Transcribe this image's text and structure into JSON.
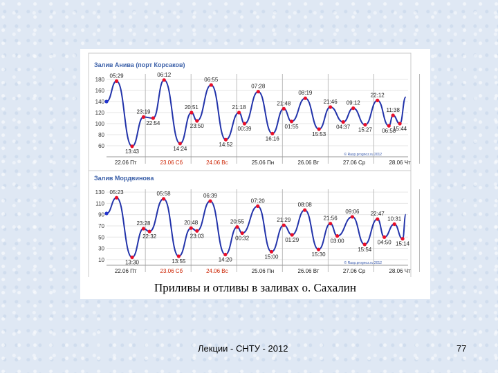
{
  "caption": "Приливы и отливы в заливах о. Сахалин",
  "footer": {
    "lecture": "Лекции - СНТУ - 2012",
    "page": "77"
  },
  "colors": {
    "curve": "#2233aa",
    "marker": "#e8102a",
    "start_marker": "#2233cc",
    "title": "#3a5fa8",
    "weekend": "#cc2200",
    "frame": "#c8c8c8",
    "grid": "#e6e6e6"
  },
  "chart_data": [
    {
      "type": "line",
      "title": "Залив Анива (порт Корсаков)",
      "credit": "© Rasp.prognoz.ru 2012",
      "ylim": [
        40,
        190
      ],
      "yticks": [
        60,
        80,
        100,
        120,
        140,
        160,
        180
      ],
      "days": [
        {
          "label": "22.06 Пт",
          "weekend": false
        },
        {
          "label": "23.06 Сб",
          "weekend": true
        },
        {
          "label": "24.06 Вс",
          "weekend": true
        },
        {
          "label": "25.06 Пн",
          "weekend": false
        },
        {
          "label": "26.06 Вт",
          "weekend": false
        },
        {
          "label": "27.06 Ср",
          "weekend": false
        },
        {
          "label": "28.06 Чт",
          "weekend": false
        }
      ],
      "start": {
        "x": 0.0,
        "y": 140
      },
      "end": {
        "x": 6.55,
        "y": 148
      },
      "points": [
        {
          "x": 0.22,
          "y": 177,
          "label": "05:29"
        },
        {
          "x": 0.56,
          "y": 59,
          "label": "13:43"
        },
        {
          "x": 0.81,
          "y": 112,
          "label": "23:19"
        },
        {
          "x": 1.02,
          "y": 110,
          "label": "22:54"
        },
        {
          "x": 1.26,
          "y": 179,
          "label": "06:12"
        },
        {
          "x": 1.61,
          "y": 64,
          "label": "14:24"
        },
        {
          "x": 1.86,
          "y": 120,
          "label": "20:51"
        },
        {
          "x": 1.98,
          "y": 105,
          "label": "23:50"
        },
        {
          "x": 2.29,
          "y": 170,
          "label": "06:55"
        },
        {
          "x": 2.61,
          "y": 71,
          "label": "14:52"
        },
        {
          "x": 2.9,
          "y": 120,
          "label": "21:18"
        },
        {
          "x": 3.02,
          "y": 100,
          "label": "00:39"
        },
        {
          "x": 3.32,
          "y": 158,
          "label": "07:28"
        },
        {
          "x": 3.63,
          "y": 82,
          "label": "16:16"
        },
        {
          "x": 3.88,
          "y": 127,
          "label": "21:48"
        },
        {
          "x": 4.05,
          "y": 104,
          "label": "01:55"
        },
        {
          "x": 4.35,
          "y": 146,
          "label": "08:19"
        },
        {
          "x": 4.65,
          "y": 90,
          "label": "15:53"
        },
        {
          "x": 4.9,
          "y": 130,
          "label": "21:46"
        },
        {
          "x": 5.18,
          "y": 103,
          "label": "04:37"
        },
        {
          "x": 5.4,
          "y": 128,
          "label": "09:12"
        },
        {
          "x": 5.66,
          "y": 98,
          "label": "15:27"
        },
        {
          "x": 5.93,
          "y": 142,
          "label": "22:12"
        },
        {
          "x": 6.18,
          "y": 96,
          "label": "06:58"
        },
        {
          "x": 6.27,
          "y": 115,
          "label": "11:38"
        },
        {
          "x": 6.42,
          "y": 100,
          "label": "15:44"
        }
      ]
    },
    {
      "type": "line",
      "title": "Залив Мордвинова",
      "credit": "© Rasp.prognoz.ru 2012",
      "ylim": [
        0,
        135
      ],
      "yticks": [
        10,
        30,
        50,
        70,
        90,
        110,
        130
      ],
      "days": [
        {
          "label": "22.06 Пт",
          "weekend": false
        },
        {
          "label": "23.06 Сб",
          "weekend": true
        },
        {
          "label": "24.06 Вс",
          "weekend": true
        },
        {
          "label": "25.06 Пн",
          "weekend": false
        },
        {
          "label": "26.06 Вт",
          "weekend": false
        },
        {
          "label": "27.06 Ср",
          "weekend": false
        },
        {
          "label": "28.06 Чт",
          "weekend": false
        }
      ],
      "start": {
        "x": 0.0,
        "y": 92
      },
      "end": {
        "x": 6.55,
        "y": 90
      },
      "points": [
        {
          "x": 0.22,
          "y": 120,
          "label": "05:23"
        },
        {
          "x": 0.56,
          "y": 14,
          "label": "13:30"
        },
        {
          "x": 0.81,
          "y": 65,
          "label": "23:28"
        },
        {
          "x": 0.94,
          "y": 60,
          "label": "22:32"
        },
        {
          "x": 1.25,
          "y": 118,
          "label": "05:58"
        },
        {
          "x": 1.58,
          "y": 16,
          "label": "13:55"
        },
        {
          "x": 1.85,
          "y": 66,
          "label": "20:48"
        },
        {
          "x": 1.98,
          "y": 61,
          "label": "23:03"
        },
        {
          "x": 2.27,
          "y": 114,
          "label": "06:39"
        },
        {
          "x": 2.6,
          "y": 19,
          "label": "14:20"
        },
        {
          "x": 2.86,
          "y": 68,
          "label": "20:55"
        },
        {
          "x": 2.97,
          "y": 57,
          "label": "00:32"
        },
        {
          "x": 3.31,
          "y": 105,
          "label": "07:20"
        },
        {
          "x": 3.61,
          "y": 24,
          "label": "15:00"
        },
        {
          "x": 3.88,
          "y": 71,
          "label": "21:29"
        },
        {
          "x": 4.06,
          "y": 54,
          "label": "01:29"
        },
        {
          "x": 4.34,
          "y": 98,
          "label": "08:08"
        },
        {
          "x": 4.64,
          "y": 28,
          "label": "15:30"
        },
        {
          "x": 4.9,
          "y": 74,
          "label": "21:56"
        },
        {
          "x": 5.05,
          "y": 52,
          "label": "03:00"
        },
        {
          "x": 5.38,
          "y": 86,
          "label": "09:06"
        },
        {
          "x": 5.65,
          "y": 37,
          "label": "15:54"
        },
        {
          "x": 5.93,
          "y": 82,
          "label": "22:47"
        },
        {
          "x": 6.08,
          "y": 50,
          "label": "04:50"
        },
        {
          "x": 6.3,
          "y": 73,
          "label": "10:31"
        },
        {
          "x": 6.48,
          "y": 47,
          "label": "15:14"
        }
      ]
    }
  ]
}
